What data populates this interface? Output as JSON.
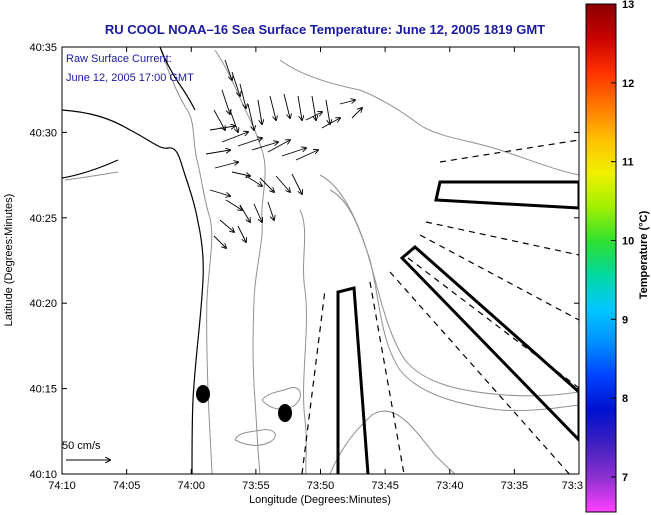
{
  "title": "RU COOL  NOAA–16  Sea Surface Temperature:  June 12, 2005 1819 GMT",
  "legend": {
    "line1": "Raw Surface Current:",
    "line2": "June 12, 2005 17:00 GMT",
    "scale_label": "50 cm/s"
  },
  "axes": {
    "xlabel": "Longitude (Degrees:Minutes)",
    "ylabel": "Latitude (Degrees:Minutes)",
    "xticks": [
      "74:10",
      "74:05",
      "74:00",
      "73:55",
      "73:50",
      "73:45",
      "73:40",
      "73:35",
      "73:3"
    ],
    "yticks": [
      "40:35",
      "40:30",
      "40:25",
      "40:20",
      "40:15",
      "40:10"
    ]
  },
  "colorbar": {
    "label": "Temperature (°C)",
    "ticks": [
      "13",
      "12",
      "11",
      "10",
      "9",
      "8",
      "7"
    ],
    "colors": [
      "#8b0000",
      "#c80000",
      "#ff3000",
      "#ff7800",
      "#ffc000",
      "#f0f000",
      "#a0f000",
      "#30e030",
      "#00d8a0",
      "#00c8ff",
      "#0090ff",
      "#0040ff",
      "#0010d0",
      "#4020c0",
      "#9030d0",
      "#ff40ff"
    ]
  },
  "colors": {
    "title": "#1a1aa0",
    "contour": "#909090",
    "coast": "#000000"
  }
}
